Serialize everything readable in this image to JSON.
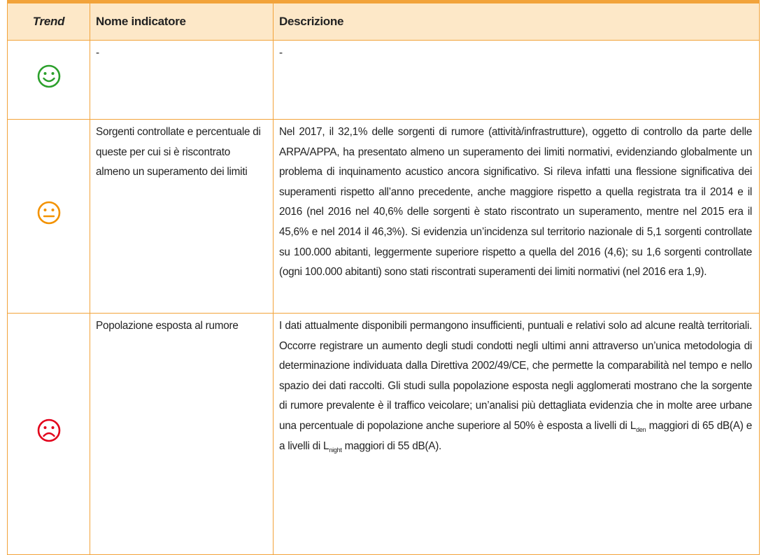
{
  "table": {
    "header": [
      "Trend",
      "Nome indicatore",
      "Descrizione"
    ],
    "rows": [
      {
        "name": "-",
        "description": [
          "-"
        ]
      },
      {
        "name": "Sorgenti controllate e percentuale di queste per cui si è riscontrato almeno un superamento dei limiti",
        "description": [
          "Nel 2017, il 32,1% delle sorgenti di rumore (attività/infrastrutture), oggetto di controllo da parte delle ARPA/APPA, ha presentato almeno un superamento dei limiti normativi, evidenziando globalmente un problema di inquinamento acustico ancora significativo. Si rileva infatti una flessione significativa dei superamenti rispetto all’anno precedente, anche maggiore rispetto a quella registrata tra il 2014 e il 2016 (nel 2016 nel 40,6% delle sorgenti è stato riscontrato un superamento, mentre nel 2015 era il 45,6% e nel 2014 il 46,3%). Si evidenzia un’incidenza sul territorio nazionale di 5,1 sorgenti controllate su 100.000 abitanti, leggermente superiore rispetto a quella del 2016 (4,6); su 1,6 sorgenti controllate (ogni 100.000 abitanti) sono stati riscontrati superamenti dei limiti normativi (nel 2016 era 1,9)."
        ]
      },
      {
        "name": "Popolazione esposta al rumore",
        "description": [
          "I dati attualmente disponibili permangono insufficienti, puntuali e relativi solo ad alcune realtà territoriali. Occorre registrare un aumento degli studi condotti negli ultimi anni attraverso un’unica metodologia di determinazione individuata dalla Direttiva 2002/49/CE, che permette la comparabilità nel tempo e nello spazio dei dati raccolti. Gli studi sulla popolazione esposta negli agglomerati mostrano che la sorgente di rumore prevalente è il traffico veicolare; un’analisi più dettagliata evidenzia che in molte aree urbane una percentuale di popolazione anche superiore al 50% è esposta a livelli di L",
          "den",
          " maggiori di 65 dB(A) e a livelli di L",
          "night",
          " maggiori di 55 dB(A)."
        ]
      }
    ]
  }
}
